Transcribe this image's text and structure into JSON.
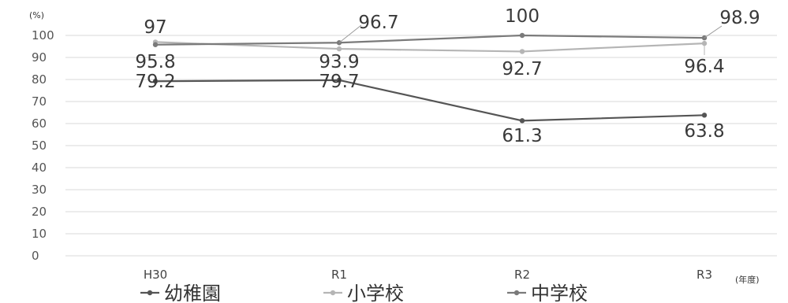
{
  "chart_data": {
    "type": "line",
    "ylabel": "(%)",
    "xlabel": "(年度)",
    "categories": [
      "H30",
      "R1",
      "R2",
      "R3"
    ],
    "ylim": [
      0,
      100
    ],
    "yticks": [
      0,
      10,
      20,
      30,
      40,
      50,
      60,
      70,
      80,
      90,
      100
    ],
    "grid": true,
    "legend_position": "bottom",
    "series": [
      {
        "name": "幼稚園",
        "values": [
          79.2,
          79.7,
          61.3,
          63.8
        ],
        "color": "#555555"
      },
      {
        "name": "小学校",
        "values": [
          97,
          93.9,
          92.7,
          96.4
        ],
        "color": "#b5b5b5"
      },
      {
        "name": "中学校",
        "values": [
          95.8,
          96.7,
          100,
          98.9
        ],
        "color": "#7a7a7a"
      }
    ],
    "data_labels": [
      [
        "79.2",
        "79.7",
        "61.3",
        "63.8"
      ],
      [
        "97",
        "93.9",
        "92.7",
        "96.4"
      ],
      [
        "95.8",
        "96.7",
        "100",
        "98.9"
      ]
    ]
  }
}
